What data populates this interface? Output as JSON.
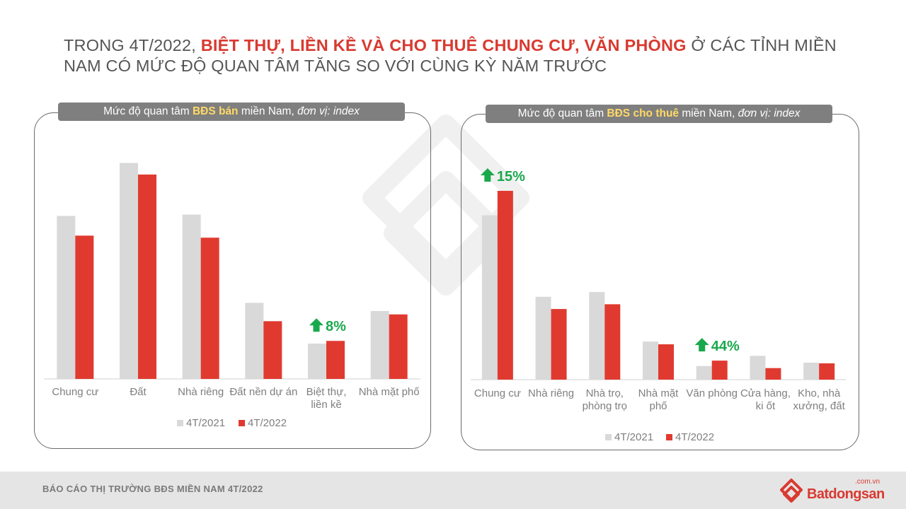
{
  "title": {
    "part1": "TRONG 4T/2022, ",
    "highlight": "BIỆT THỰ, LIỀN KỀ VÀ CHO THUÊ CHUNG CƯ, VĂN PHÒNG",
    "part2": " Ở CÁC TỈNH MIỀN NAM CÓ MỨC ĐỘ QUAN TÂM TĂNG SO VỚI CÙNG KỲ NĂM TRƯỚC"
  },
  "left_header": {
    "pre": "Mức độ quan tâm ",
    "bold": "BĐS bán",
    "mid": " miền Nam, ",
    "italic": "đơn vị: index"
  },
  "right_header": {
    "pre": "Mức độ quan tâm ",
    "bold": "BĐS cho thuê",
    "mid": " miền Nam, ",
    "italic": "đơn vị: index"
  },
  "footer": {
    "text": "BÁO CÁO THỊ TRƯỜNG BĐS MIỀN NAM 4T/2022",
    "logo_word": "Batdongsan",
    "logo_com": ".com.vn"
  },
  "colors": {
    "series_2021": "#d9d9d9",
    "series_2022": "#e03a30",
    "accent": "#d93a31",
    "up_arrow": "#1aa84c",
    "header_bg": "#7f7f7f"
  },
  "chart_data": [
    {
      "type": "bar",
      "categories": [
        "Chung cư",
        "Đất",
        "Nhà riêng",
        "Đất nền dự án",
        "Biệt thự, liền kề",
        "Nhà mặt phố"
      ],
      "series": [
        {
          "name": "4T/2021",
          "values": [
            240,
            318,
            242,
            112,
            52,
            100
          ]
        },
        {
          "name": "4T/2022",
          "values": [
            211,
            301,
            208,
            85,
            56,
            95
          ]
        }
      ],
      "annotations": [
        {
          "category": "Biệt thự, liền kề",
          "text": "8%",
          "icon": "up-arrow-icon"
        }
      ],
      "legend": "bottom",
      "ylim": [
        0,
        330
      ],
      "grid": false
    },
    {
      "type": "bar",
      "categories": [
        "Chung cư",
        "Nhà riêng",
        "Nhà trọ, phòng trọ",
        "Nhà mặt phố",
        "Văn phòng",
        "Cửa hàng, ki ốt",
        "Kho, nhà xưởng, đất"
      ],
      "series": [
        {
          "name": "4T/2021",
          "values": [
            242,
            122,
            129,
            56,
            20,
            35,
            25
          ]
        },
        {
          "name": "4T/2022",
          "values": [
            278,
            104,
            111,
            52,
            28,
            17,
            24
          ]
        }
      ],
      "annotations": [
        {
          "category": "Chung cư",
          "text": "15%",
          "icon": "up-arrow-icon"
        },
        {
          "category": "Văn phòng",
          "text": "44%",
          "icon": "up-arrow-icon"
        }
      ],
      "legend": "bottom",
      "ylim": [
        0,
        330
      ],
      "grid": false
    }
  ]
}
